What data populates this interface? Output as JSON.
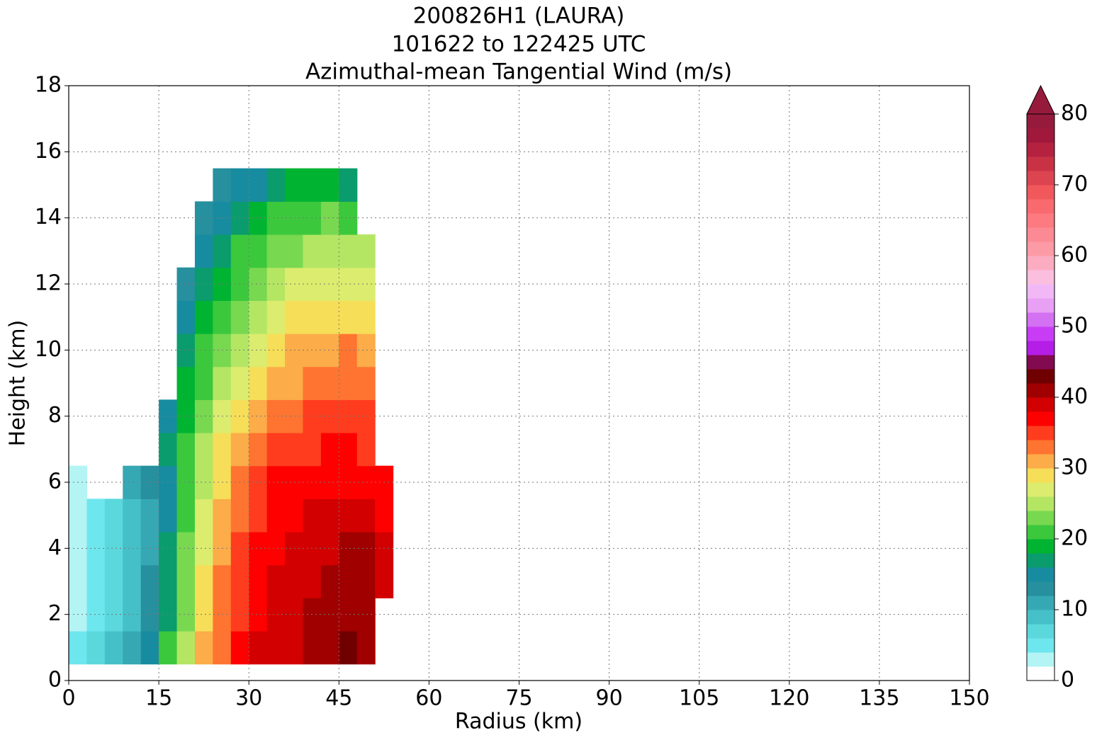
{
  "chart_data": {
    "type": "contourf",
    "title": "200826H1 (LAURA)",
    "subtitle": "101622 to 122425 UTC",
    "subtitle2": "Azimuthal-mean Tangential Wind (m/s)",
    "xlabel": "Radius (km)",
    "ylabel": "Height (km)",
    "xlim": [
      0,
      150
    ],
    "xticks": [
      0,
      15,
      30,
      45,
      60,
      75,
      90,
      105,
      120,
      135,
      150
    ],
    "ylim": [
      0,
      18
    ],
    "yticks": [
      0,
      2,
      4,
      6,
      8,
      10,
      12,
      14,
      16,
      18
    ],
    "grid": true,
    "x": [
      1.5,
      4.5,
      7.5,
      10.5,
      13.5,
      16.5,
      19.5,
      22.5,
      25.5,
      28.5,
      31.5,
      34.5,
      37.5,
      40.5,
      43.5,
      46.5,
      49.5,
      52.5
    ],
    "y": [
      1,
      2,
      3,
      4,
      5,
      6,
      7,
      8,
      9,
      10,
      11,
      12,
      13,
      14,
      15
    ],
    "z": [
      [
        4,
        6,
        8,
        10,
        14,
        20,
        25,
        30,
        33,
        36,
        38,
        39,
        39.5,
        40,
        41,
        42,
        41,
        null
      ],
      [
        3,
        5,
        7,
        9,
        12,
        17,
        23,
        28,
        32,
        35,
        37,
        38.5,
        39,
        40,
        41,
        41.5,
        40.5,
        null
      ],
      [
        3,
        5,
        7,
        9,
        12,
        17,
        23,
        28,
        32,
        35,
        37,
        38,
        39,
        39.5,
        40,
        40.5,
        40,
        38
      ],
      [
        3,
        5,
        7,
        9,
        11,
        16,
        22,
        27,
        31,
        34,
        36,
        37,
        38,
        39,
        39.5,
        40,
        40,
        38
      ],
      [
        3,
        5,
        7,
        9,
        11,
        15,
        21,
        26,
        30,
        33,
        35.5,
        37,
        37.5,
        38,
        39,
        39.5,
        39,
        37
      ],
      [
        3,
        null,
        null,
        10,
        12,
        15,
        20,
        25,
        29,
        32,
        34,
        36,
        36.5,
        37,
        37.5,
        37.5,
        37,
        36
      ],
      [
        null,
        null,
        null,
        null,
        null,
        16,
        20,
        24,
        28,
        31,
        33,
        34,
        35,
        35.5,
        36,
        36,
        35.5,
        null
      ],
      [
        null,
        null,
        null,
        null,
        null,
        15,
        19,
        23,
        27,
        29,
        31.5,
        32.5,
        33,
        34,
        34.5,
        35,
        34.5,
        null
      ],
      [
        null,
        null,
        null,
        null,
        null,
        null,
        18,
        21,
        25,
        27,
        29,
        30.5,
        31.5,
        32.5,
        33,
        33,
        33,
        null
      ],
      [
        null,
        null,
        null,
        null,
        null,
        null,
        17,
        20,
        23,
        25,
        27.5,
        29,
        30,
        31,
        31.5,
        32,
        31.5,
        null
      ],
      [
        null,
        null,
        null,
        null,
        null,
        null,
        15,
        18,
        21,
        23.5,
        25.5,
        27,
        28,
        29,
        29.5,
        29.5,
        29.5,
        null
      ],
      [
        null,
        null,
        null,
        null,
        null,
        null,
        13,
        16,
        19,
        21.5,
        23.5,
        25,
        26,
        26.5,
        27,
        27,
        27,
        null
      ],
      [
        null,
        null,
        null,
        null,
        null,
        null,
        null,
        14,
        17,
        20,
        21.5,
        22.5,
        23.5,
        24,
        24.5,
        24.5,
        24,
        null
      ],
      [
        null,
        null,
        null,
        null,
        null,
        null,
        null,
        13,
        15,
        17,
        19,
        20,
        21,
        21.5,
        22,
        21.5,
        null,
        null
      ],
      [
        null,
        null,
        null,
        null,
        null,
        null,
        null,
        null,
        13,
        14,
        15,
        17,
        18,
        18.5,
        18,
        17,
        null,
        null
      ]
    ],
    "levels": [
      0,
      2,
      4,
      6,
      8,
      10,
      12,
      14,
      16,
      18,
      20,
      22,
      24,
      26,
      28,
      30,
      32,
      34,
      36,
      38,
      40,
      42,
      44,
      46,
      48,
      50,
      52,
      54,
      56,
      58,
      60,
      62,
      64,
      66,
      68,
      70,
      72,
      74,
      76,
      78,
      80
    ],
    "colors": [
      "#ffffff",
      "#b4f4f4",
      "#6ee6ee",
      "#5ad8dc",
      "#46c0c8",
      "#36a8b4",
      "#26909f",
      "#178ca0",
      "#0a9c6c",
      "#00b432",
      "#3cc83c",
      "#78d850",
      "#b4e664",
      "#dcec6e",
      "#f6de58",
      "#fcac48",
      "#ff7430",
      "#ff3c1e",
      "#ff0000",
      "#d20000",
      "#a00000",
      "#700000",
      "#820a50",
      "#b41ee6",
      "#c83cf6",
      "#d470f2",
      "#e8a0f4",
      "#f2b8f6",
      "#fcbede",
      "#fcacc0",
      "#fc9aa6",
      "#fc8a94",
      "#fc7a80",
      "#f86a6e",
      "#f0585c",
      "#dc4450",
      "#c83244",
      "#b42240",
      "#a0183c",
      "#961a3c"
    ],
    "extend_color": "#961a3c",
    "colorbar_ticks": [
      0,
      10,
      20,
      30,
      40,
      50,
      60,
      70,
      80
    ]
  }
}
